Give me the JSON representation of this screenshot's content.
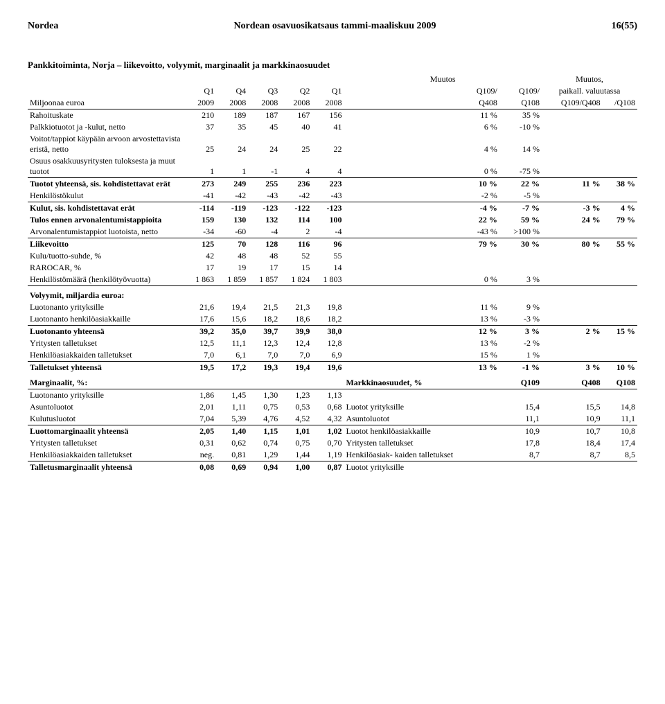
{
  "header": {
    "company": "Nordea",
    "title": "Nordean osavuosikatsaus tammi-maaliskuu 2009",
    "page": "16(55)"
  },
  "table": {
    "subtitle": "Pankkitoiminta, Norja – liikevoitto, volyymit, marginaalit ja markkinaosuudet",
    "super_headers": {
      "muutos": "Muutos",
      "muutos2": "Muutos,"
    },
    "col_labels": {
      "row_label": "Miljoonaa euroa",
      "q1": "Q1",
      "q4": "Q4",
      "q3": "Q3",
      "q2": "Q2",
      "q1b": "Q1",
      "q109a": "Q109/",
      "q109b": "Q109/",
      "paikall": "paikall. valuutassa"
    },
    "year_labels": {
      "y2009": "2009",
      "y2008a": "2008",
      "y2008b": "2008",
      "y2008c": "2008",
      "y2008d": "2008",
      "q408": "Q408",
      "q108": "Q108",
      "q109q408": "Q109/Q408",
      "slashq108": "/Q108"
    },
    "rows": [
      {
        "label": "Rahoituskate",
        "v": [
          "210",
          "189",
          "187",
          "167",
          "156",
          "11 %",
          "35 %",
          "",
          ""
        ]
      },
      {
        "label": "Palkkiotuotot ja -kulut, netto",
        "v": [
          "37",
          "35",
          "45",
          "40",
          "41",
          "6 %",
          "-10 %",
          "",
          ""
        ]
      },
      {
        "label": "Voitot/tappiot käypään arvoon arvostettavista eristä, netto",
        "v": [
          "25",
          "24",
          "24",
          "25",
          "22",
          "4 %",
          "14 %",
          "",
          ""
        ]
      },
      {
        "label": "Osuus osakkuusyritysten tuloksesta ja muut tuotot",
        "v": [
          "1",
          "1",
          "-1",
          "4",
          "4",
          "0 %",
          "-75 %",
          "",
          ""
        ]
      },
      {
        "label": "Tuotot yhteensä, sis. kohdistettavat erät",
        "v": [
          "273",
          "249",
          "255",
          "236",
          "223",
          "10 %",
          "22 %",
          "11 %",
          "38 %"
        ],
        "bold": true,
        "topline": true
      },
      {
        "label": "Henkilöstökulut",
        "v": [
          "-41",
          "-42",
          "-43",
          "-42",
          "-43",
          "-2 %",
          "-5 %",
          "",
          ""
        ]
      },
      {
        "label": "Kulut, sis. kohdistettavat erät",
        "v": [
          "-114",
          "-119",
          "-123",
          "-122",
          "-123",
          "-4 %",
          "-7 %",
          "-3 %",
          "4 %"
        ],
        "bold": true,
        "topline": true
      },
      {
        "label": "Tulos ennen arvonalentumistappioita",
        "v": [
          "159",
          "130",
          "132",
          "114",
          "100",
          "22 %",
          "59 %",
          "24 %",
          "79 %"
        ],
        "bold": true
      },
      {
        "label": "Arvonalentumistappiot luotoista, netto",
        "v": [
          "-34",
          "-60",
          "-4",
          "2",
          "-4",
          "-43 %",
          ">100 %",
          "",
          ""
        ]
      },
      {
        "label": "Liikevoitto",
        "v": [
          "125",
          "70",
          "128",
          "116",
          "96",
          "79 %",
          "30 %",
          "80 %",
          "55 %"
        ],
        "bold": true,
        "topline": true
      }
    ],
    "ratios": [
      {
        "label": "Kulu/tuotto-suhde, %",
        "v": [
          "42",
          "48",
          "48",
          "52",
          "55",
          "",
          "",
          "",
          ""
        ]
      },
      {
        "label": "RAROCAR, %",
        "v": [
          "17",
          "19",
          "17",
          "15",
          "14",
          "",
          "",
          "",
          ""
        ]
      },
      {
        "label": "Henkilöstömäärä (henkilötyövuotta)",
        "v": [
          "1 863",
          "1 859",
          "1 857",
          "1 824",
          "1 803",
          "0 %",
          "3 %",
          "",
          ""
        ],
        "underline": true
      }
    ],
    "volumes_title": "Volyymit, miljardia euroa:",
    "volumes": [
      {
        "label": "Luotonanto yrityksille",
        "v": [
          "21,6",
          "19,4",
          "21,5",
          "21,3",
          "19,8",
          "11 %",
          "9 %",
          "",
          ""
        ]
      },
      {
        "label": "Luotonanto henkilöasiakkaille",
        "v": [
          "17,6",
          "15,6",
          "18,2",
          "18,6",
          "18,2",
          "13 %",
          "-3 %",
          "",
          ""
        ]
      },
      {
        "label": "Luotonanto yhteensä",
        "v": [
          "39,2",
          "35,0",
          "39,7",
          "39,9",
          "38,0",
          "12 %",
          "3 %",
          "2 %",
          "15 %"
        ],
        "bold": true,
        "topline": true
      },
      {
        "label": "Yritysten talletukset",
        "v": [
          "12,5",
          "11,1",
          "12,3",
          "12,4",
          "12,8",
          "13 %",
          "-2 %",
          "",
          ""
        ]
      },
      {
        "label": "Henkilöasiakkaiden talletukset",
        "v": [
          "7,0",
          "6,1",
          "7,0",
          "7,0",
          "6,9",
          "15 %",
          "1 %",
          "",
          ""
        ]
      },
      {
        "label": "Talletukset yhteensä",
        "v": [
          "19,5",
          "17,2",
          "19,3",
          "19,4",
          "19,6",
          "13 %",
          "-1 %",
          "3 %",
          "10 %"
        ],
        "bold": true,
        "topline": true
      }
    ],
    "margins_title": "Marginaalit, %:",
    "market_title": "Markkinaosuudet, %",
    "market_cols": {
      "q109": "Q109",
      "q408": "Q408",
      "q108": "Q108"
    },
    "margins": [
      {
        "label": "Luotonanto yrityksille",
        "v": [
          "1,86",
          "1,45",
          "1,30",
          "1,23",
          "1,13"
        ],
        "ml": "",
        "mv": [
          "",
          "",
          ""
        ]
      },
      {
        "label": "Asuntoluotot",
        "v": [
          "2,01",
          "1,11",
          "0,75",
          "0,53",
          "0,68"
        ],
        "ml": "Luotot yrityksille",
        "mv": [
          "15,4",
          "15,5",
          "14,8"
        ]
      },
      {
        "label": "Kulutusluotot",
        "v": [
          "7,04",
          "5,39",
          "4,76",
          "4,52",
          "4,32"
        ],
        "ml": "Asuntoluotot",
        "mv": [
          "11,1",
          "10,9",
          "11,1"
        ]
      },
      {
        "label": "Luottomarginaalit yhteensä",
        "v": [
          "2,05",
          "1,40",
          "1,15",
          "1,01",
          "1,02"
        ],
        "ml": "Luotot henkilöasiakkaille",
        "mv": [
          "10,9",
          "10,7",
          "10,8"
        ],
        "bold": true,
        "topline": true
      },
      {
        "label": "Yritysten talletukset",
        "v": [
          "0,31",
          "0,62",
          "0,74",
          "0,75",
          "0,70"
        ],
        "ml": "Yritysten talletukset",
        "mv": [
          "17,8",
          "18,4",
          "17,4"
        ]
      },
      {
        "label": "Henkilöasiakkaiden talletukset",
        "v": [
          "neg.",
          "0,81",
          "1,29",
          "1,44",
          "1,19"
        ],
        "ml": "Henkilöasiak- kaiden talletukset",
        "mv": [
          "8,7",
          "8,7",
          "8,5"
        ]
      },
      {
        "label": "Talletusmarginaalit yhteensä",
        "v": [
          "0,08",
          "0,69",
          "0,94",
          "1,00",
          "0,87"
        ],
        "ml": "Luotot yrityksille",
        "mv": [
          "",
          "",
          ""
        ],
        "bold": true,
        "topline": true
      }
    ]
  }
}
